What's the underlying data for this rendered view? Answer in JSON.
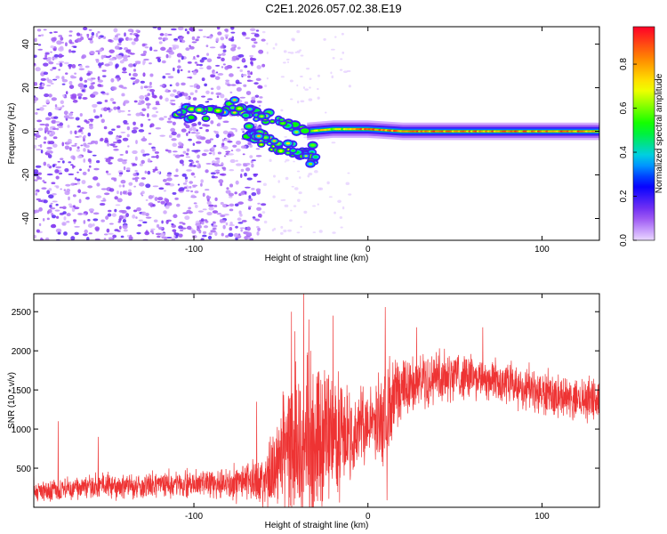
{
  "figure": {
    "title": "C2E1.2026.057.02.38.E19"
  },
  "chart_data": [
    {
      "type": "heatmap",
      "xlabel": "Height of straight line (km)",
      "ylabel": "Frequency (Hz)",
      "xlim": [
        -192,
        133
      ],
      "ylim": [
        -50,
        48
      ],
      "xticks": [
        -100,
        0,
        100
      ],
      "yticks": [
        -40,
        -20,
        0,
        20,
        40
      ],
      "colorbar": {
        "label": "Normalized spectral amplitude",
        "range": [
          0.0,
          0.97
        ],
        "ticks": [
          0.0,
          0.2,
          0.4,
          0.6,
          0.8
        ]
      },
      "features": [
        {
          "name": "noise",
          "x_range": [
            -192,
            -60
          ],
          "y_range": [
            -50,
            48
          ],
          "amplitude": 0.15
        },
        {
          "name": "branch_upper",
          "points": [
            [
              -110,
              8
            ],
            [
              -90,
              9
            ],
            [
              -80,
              12
            ],
            [
              -60,
              8
            ],
            [
              -45,
              3
            ],
            [
              -35,
              0
            ]
          ],
          "amplitude": 0.45
        },
        {
          "name": "branch_lower",
          "points": [
            [
              -70,
              0
            ],
            [
              -60,
              -4
            ],
            [
              -50,
              -8
            ],
            [
              -40,
              -10
            ],
            [
              -30,
              -12
            ]
          ],
          "amplitude": 0.4
        },
        {
          "name": "carrier",
          "points": [
            [
              -35,
              0
            ],
            [
              -20,
              1
            ],
            [
              0,
              1
            ],
            [
              20,
              0
            ],
            [
              60,
              0
            ],
            [
              100,
              0
            ],
            [
              133,
              0
            ]
          ],
          "amplitude": 0.9
        }
      ]
    },
    {
      "type": "line",
      "xlabel": "Height of straight line (km)",
      "ylabel": "SNR (10 * v/v)",
      "xlim": [
        -192,
        133
      ],
      "ylim": [
        0,
        2730
      ],
      "xticks": [
        -100,
        0,
        100
      ],
      "yticks": [
        500,
        1000,
        1500,
        2000,
        2500
      ],
      "line_color": "#ee3333",
      "envelope": {
        "x": [
          -192,
          -160,
          -120,
          -80,
          -60,
          -50,
          -40,
          -30,
          -20,
          -10,
          0,
          10,
          20,
          40,
          60,
          80,
          100,
          120,
          133
        ],
        "mean": [
          200,
          260,
          280,
          300,
          350,
          650,
          800,
          850,
          900,
          950,
          1050,
          1150,
          1500,
          1700,
          1700,
          1580,
          1450,
          1380,
          1400
        ],
        "amplitude": [
          120,
          140,
          150,
          170,
          250,
          650,
          800,
          900,
          650,
          500,
          450,
          550,
          350,
          280,
          250,
          260,
          240,
          230,
          220
        ]
      },
      "spikes": [
        {
          "x": -192,
          "value": 650
        },
        {
          "x": -178,
          "value": 1100
        },
        {
          "x": -155,
          "value": 900
        },
        {
          "x": -64,
          "value": 1350
        },
        {
          "x": -44,
          "value": 2500
        },
        {
          "x": -42,
          "value": 2250
        },
        {
          "x": -37,
          "value": 2730
        },
        {
          "x": -34,
          "value": 2400
        },
        {
          "x": -33,
          "value": 2000
        },
        {
          "x": -20,
          "value": 2450
        },
        {
          "x": 10,
          "value": 2560
        },
        {
          "x": 11,
          "value": 90
        },
        {
          "x": 28,
          "value": 2300
        },
        {
          "x": 66,
          "value": 2300
        }
      ]
    }
  ]
}
